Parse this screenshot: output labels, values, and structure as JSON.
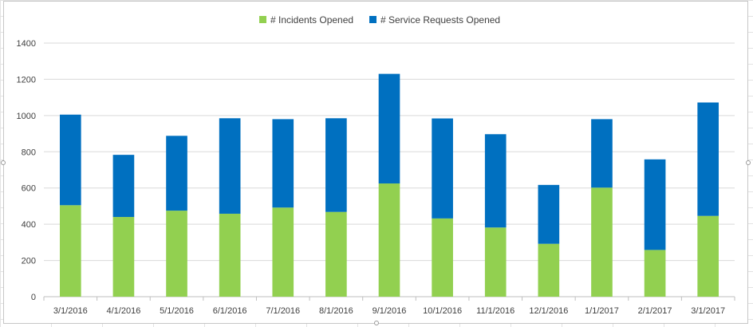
{
  "chart_data": {
    "type": "bar",
    "stacked": true,
    "categories": [
      "3/1/2016",
      "4/1/2016",
      "5/1/2016",
      "6/1/2016",
      "7/1/2016",
      "8/1/2016",
      "9/1/2016",
      "10/1/2016",
      "11/1/2016",
      "12/1/2016",
      "1/1/2017",
      "2/1/2017",
      "3/1/2017"
    ],
    "series": [
      {
        "name": "# Incidents Opened",
        "color": "#92d050",
        "values": [
          505,
          440,
          475,
          458,
          492,
          468,
          625,
          432,
          382,
          292,
          602,
          258,
          446
        ]
      },
      {
        "name": "# Service Requests Opened",
        "color": "#0070c0",
        "values": [
          500,
          343,
          413,
          527,
          488,
          517,
          605,
          552,
          515,
          325,
          378,
          500,
          626
        ]
      }
    ],
    "yticks": [
      "0",
      "200",
      "400",
      "600",
      "800",
      "1000",
      "1200",
      "1400"
    ],
    "ylim": [
      0,
      1400
    ],
    "grid": true,
    "legend": "top-center",
    "title": "",
    "xlabel": "",
    "ylabel": ""
  }
}
